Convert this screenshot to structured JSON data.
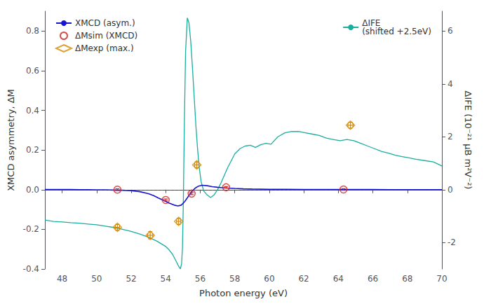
{
  "chart_data": {
    "type": "line",
    "x_label": "Photon energy (eV)",
    "y_label": "XMCD asymmetry, ΔM",
    "y2_label": "ΔIFE (10⁻²¹ μB m²V⁻²)",
    "xlim": [
      47,
      70
    ],
    "ylim": [
      -0.4,
      0.9
    ],
    "y2lim": [
      -3.0,
      6.75
    ],
    "xticks": [
      48,
      50,
      52,
      54,
      56,
      58,
      60,
      62,
      64,
      66,
      68,
      70
    ],
    "yticks": [
      -0.4,
      -0.2,
      {
        "value": 0.0,
        "label": "0.0"
      },
      0.2,
      0.4,
      0.6,
      0.8
    ],
    "y2ticks": [
      -2,
      0,
      2,
      4,
      6
    ],
    "grid": false,
    "legend": "upper left",
    "background": "#ffffff",
    "zero_line": {
      "value": 0,
      "color": "#444444",
      "line_style": "dashed"
    },
    "series": [
      {
        "name": "XMCD (asym.)",
        "type": "line",
        "color": "#1515d0",
        "x": [
          47,
          47.5,
          48,
          48.5,
          49,
          49.5,
          50,
          50.5,
          51,
          51.5,
          52,
          52.5,
          53,
          53.3,
          53.6,
          53.9,
          54.2,
          54.5,
          54.7,
          54.9,
          55.1,
          55.3,
          55.5,
          55.7,
          55.9,
          56.1,
          56.4,
          56.7,
          57.0,
          57.3,
          57.6,
          58.0,
          58.5,
          59,
          60,
          61,
          62,
          63,
          64,
          65,
          66,
          67,
          68,
          69,
          70
        ],
        "values": [
          0.001,
          0.001,
          0.001,
          0.001,
          0.0,
          0.0,
          -0.001,
          -0.001,
          -0.002,
          -0.003,
          -0.005,
          -0.01,
          -0.02,
          -0.03,
          -0.043,
          -0.055,
          -0.068,
          -0.078,
          -0.082,
          -0.078,
          -0.06,
          -0.035,
          -0.01,
          0.007,
          0.018,
          0.022,
          0.02,
          0.015,
          0.012,
          0.01,
          0.008,
          0.006,
          0.004,
          0.003,
          0.002,
          0.002,
          0.001,
          0.001,
          0.001,
          0.001,
          0.001,
          0.0,
          0.0,
          0.0,
          0.0
        ]
      },
      {
        "name": "ΔMsim (XMCD)",
        "type": "scatter",
        "marker": "circle",
        "color": "#cc2222",
        "x": [
          51.2,
          54.0,
          55.5,
          57.5,
          64.3
        ],
        "values": [
          0.0,
          -0.052,
          -0.02,
          0.012,
          0.001
        ],
        "yerr": [
          0.004,
          0.005,
          0.005,
          0.004,
          0.004
        ]
      },
      {
        "name": "ΔMexp (max.)",
        "type": "scatter",
        "marker": "diamond",
        "color": "#d48800",
        "x": [
          51.2,
          53.1,
          54.75,
          55.8,
          64.7
        ],
        "values": [
          -0.19,
          -0.23,
          -0.16,
          0.125,
          0.325
        ],
        "xerr": [
          0.12,
          0.15,
          0.12,
          0.12,
          0.15
        ],
        "yerr": [
          0.015,
          0.018,
          0.015,
          0.015,
          0.015
        ]
      },
      {
        "name": "ΔIFE\n(shifted +2.5eV)",
        "type": "line",
        "axis": "y2",
        "legend": "upper right",
        "color": "#1aada0",
        "x": [
          47.0,
          47.5,
          48.0,
          48.5,
          49.0,
          49.5,
          50.0,
          50.5,
          51.0,
          51.5,
          52.0,
          52.5,
          53.0,
          53.5,
          54.0,
          54.2,
          54.4,
          54.6,
          54.75,
          54.85,
          54.92,
          54.97,
          55.02,
          55.08,
          55.15,
          55.25,
          55.35,
          55.45,
          55.55,
          55.65,
          55.75,
          55.85,
          55.95,
          56.05,
          56.2,
          56.4,
          56.6,
          56.8,
          57.0,
          57.2,
          57.4,
          57.6,
          57.8,
          58.0,
          58.3,
          58.6,
          58.9,
          59.2,
          59.5,
          59.8,
          60.1,
          60.5,
          60.9,
          61.3,
          61.7,
          62.1,
          62.5,
          62.9,
          63.3,
          63.7,
          64.1,
          64.5,
          64.9,
          65.3,
          65.7,
          66.1,
          66.5,
          66.9,
          67.3,
          67.7,
          68.1,
          68.5,
          69.0,
          69.5,
          70.0
        ],
        "values": [
          -1.15,
          -1.2,
          -1.22,
          -1.25,
          -1.27,
          -1.3,
          -1.33,
          -1.38,
          -1.43,
          -1.5,
          -1.58,
          -1.68,
          -1.8,
          -1.95,
          -2.15,
          -2.28,
          -2.45,
          -2.7,
          -2.9,
          -3.0,
          -2.8,
          -2.2,
          -0.5,
          2.5,
          5.2,
          6.5,
          6.3,
          5.6,
          4.6,
          3.5,
          2.4,
          1.5,
          0.8,
          0.3,
          -0.05,
          -0.2,
          -0.3,
          -0.2,
          0.0,
          0.25,
          0.55,
          0.85,
          1.1,
          1.35,
          1.55,
          1.65,
          1.68,
          1.6,
          1.7,
          1.75,
          1.72,
          2.0,
          2.15,
          2.2,
          2.2,
          2.15,
          2.1,
          2.05,
          1.95,
          1.9,
          1.85,
          1.9,
          1.85,
          1.75,
          1.65,
          1.55,
          1.45,
          1.38,
          1.3,
          1.25,
          1.2,
          1.15,
          1.1,
          1.05,
          0.9
        ]
      }
    ]
  }
}
